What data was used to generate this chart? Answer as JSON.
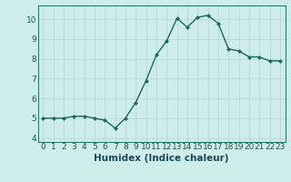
{
  "x": [
    0,
    1,
    2,
    3,
    4,
    5,
    6,
    7,
    8,
    9,
    10,
    11,
    12,
    13,
    14,
    15,
    16,
    17,
    18,
    19,
    20,
    21,
    22,
    23
  ],
  "y": [
    5.0,
    5.0,
    5.0,
    5.1,
    5.1,
    5.0,
    4.9,
    4.5,
    5.0,
    5.8,
    6.9,
    8.2,
    8.9,
    10.05,
    9.6,
    10.1,
    10.2,
    9.8,
    8.5,
    8.4,
    8.1,
    8.1,
    7.9,
    7.9
  ],
  "line_color": "#1a6b5a",
  "marker": "D",
  "markersize": 2.0,
  "linewidth": 1.0,
  "xlabel": "Humidex (Indice chaleur)",
  "xlim": [
    -0.5,
    23.5
  ],
  "ylim": [
    3.8,
    10.7
  ],
  "yticks": [
    4,
    5,
    6,
    7,
    8,
    9,
    10
  ],
  "xticks": [
    0,
    1,
    2,
    3,
    4,
    5,
    6,
    7,
    8,
    9,
    10,
    11,
    12,
    13,
    14,
    15,
    16,
    17,
    18,
    19,
    20,
    21,
    22,
    23
  ],
  "bg_color": "#ceecea",
  "grid_color": "#b8d8d5",
  "line_border_color": "#2a7a6a",
  "tick_color": "#1a5a4a",
  "label_color": "#1a4a5a",
  "xlabel_fontsize": 7.5,
  "tick_fontsize": 6.5
}
